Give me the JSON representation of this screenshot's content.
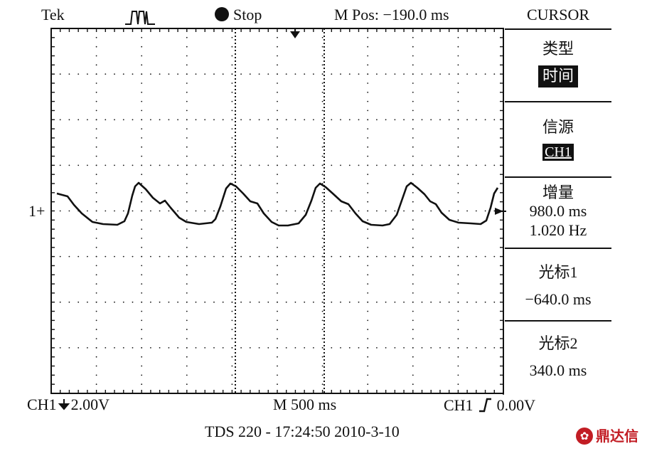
{
  "header": {
    "brand": "Tek",
    "state": "Stop",
    "position_label": "M Pos:",
    "position_value": "−190.0 ms",
    "menu_title": "CURSOR"
  },
  "menu": {
    "type_label": "类型",
    "type_value": "时间",
    "source_label": "信源",
    "source_value": "CH1",
    "delta_label": "增量",
    "delta_time": "980.0 ms",
    "delta_freq": "1.020 Hz",
    "cursor1_label": "光标1",
    "cursor1_value": "−640.0 ms",
    "cursor2_label": "光标2",
    "cursor2_value": "340.0 ms"
  },
  "channel_marker": "1+",
  "footer": {
    "ch1_scale": "CH1",
    "ch1_volts": "2.00V",
    "timebase": "M 500 ms",
    "trigger_source": "CH1",
    "trigger_level": "0.00V",
    "model_timestamp": "TDS 220 - 17:24:50  2010-3-10"
  },
  "watermark": "鼎达信",
  "colors": {
    "ink": "#111111",
    "background": "#ffffff",
    "watermark": "#c21d24"
  }
}
